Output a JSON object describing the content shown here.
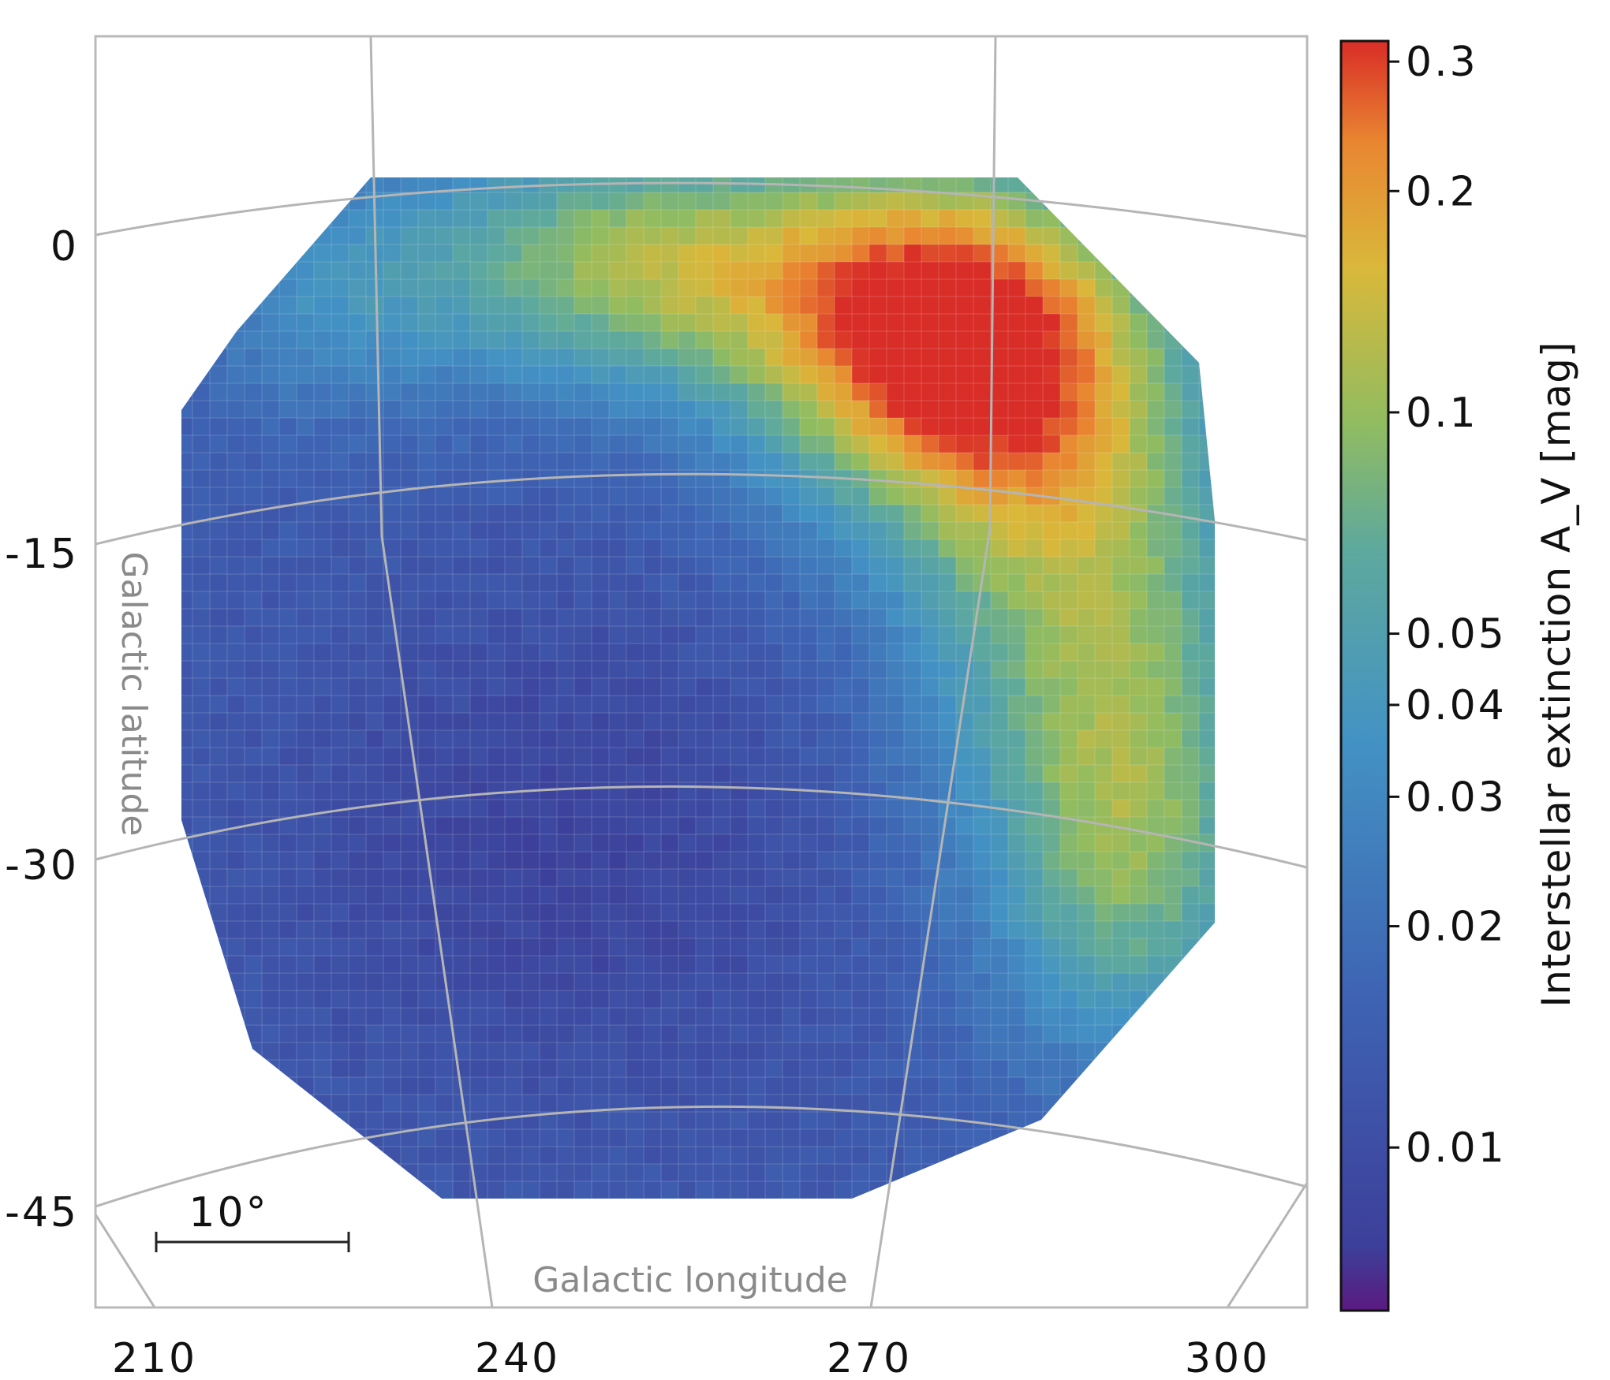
{
  "map": {
    "projection": "sky map (Galactic coordinates)",
    "x_axis_label": "Galactic longitude",
    "y_axis_label": "Galactic latitude",
    "x_ticks": [
      "210",
      "240",
      "270",
      "300"
    ],
    "y_ticks": [
      "0",
      "-15",
      "-30",
      "-45"
    ],
    "scale_bar_label": "10°",
    "value_range": [
      0.006,
      0.32
    ],
    "hotspot_approx": {
      "l": 280,
      "b": -6,
      "value": 0.3
    },
    "colors": {
      "frame": "#b9b9b9",
      "graticule": "#b5b5b5",
      "low": "#5b1a80",
      "mid": "#6cb48a",
      "high": "#d92d27"
    }
  },
  "colorbar": {
    "label": "Interstellar extinction A_V [mag]",
    "scale": "log",
    "ticks": [
      "0.3",
      "0.2",
      "0.1",
      "0.05",
      "0.04",
      "0.03",
      "0.02",
      "0.01"
    ],
    "tick_values": [
      0.3,
      0.2,
      0.1,
      0.05,
      0.04,
      0.03,
      0.02,
      0.01
    ]
  },
  "chart_data": {
    "type": "heatmap",
    "title": "",
    "xlabel": "Galactic longitude",
    "ylabel": "Galactic latitude",
    "colorbar_label": "Interstellar extinction A_V [mag]",
    "colorbar_scale": "log",
    "xlim": [
      205,
      305
    ],
    "ylim": [
      -50,
      10
    ],
    "x_ticks": [
      210,
      240,
      270,
      300
    ],
    "y_ticks": [
      0,
      -15,
      -30,
      -45
    ],
    "grid": true,
    "approx_region_means": [
      {
        "region": "upper-right (l~280, b~-6)",
        "value": 0.3
      },
      {
        "region": "upper-center (l~255, b~0)",
        "value": 0.15
      },
      {
        "region": "upper-left (l~225, b~0)",
        "value": 0.045
      },
      {
        "region": "center (l~250, b~-25)",
        "value": 0.012
      },
      {
        "region": "lower-left (l~225, b~-40)",
        "value": 0.015
      },
      {
        "region": "lower-right (l~290, b~-35)",
        "value": 0.04
      }
    ]
  }
}
